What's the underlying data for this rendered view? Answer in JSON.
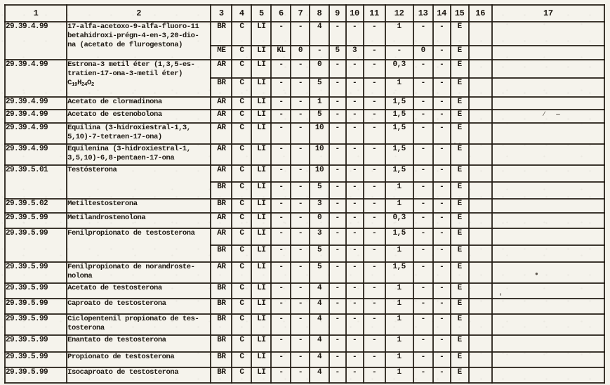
{
  "table": {
    "column_headers": [
      "1",
      "2",
      "3",
      "4",
      "5",
      "6",
      "7",
      "8",
      "9",
      "10",
      "11",
      "12",
      "13",
      "14",
      "15",
      "16",
      "17"
    ],
    "rows": [
      {
        "code": "29.39.4.99",
        "name_lines": [
          "17-alfa-acetoxo-9-alfa-fluoro-11",
          "betahidroxi-prégn-4-en-3,20-dio-",
          "na (acetato de flurogestona)"
        ],
        "subrows": [
          {
            "cells": [
              "BR",
              "C",
              "LI",
              "-",
              "-",
              "4",
              "-",
              "-",
              "-",
              "1",
              "-",
              "-",
              "E",
              "",
              ""
            ]
          },
          {
            "cells": [
              "ME",
              "C",
              "LI",
              "KL",
              "0",
              "-",
              "5",
              "3",
              "-",
              "-",
              "0",
              "-",
              "E",
              "",
              ""
            ]
          }
        ]
      },
      {
        "code": "29.39.4.99",
        "name_lines": [
          "Estrona-3 metil éter (1,3,5-es-",
          "tratien-17-ona-3-metil éter)",
          {
            "formula": [
              [
                "C",
                "19"
              ],
              [
                "H",
                "24"
              ],
              [
                "O",
                "2"
              ]
            ]
          }
        ],
        "subrows": [
          {
            "cells": [
              "AR",
              "C",
              "LI",
              "-",
              "-",
              "0",
              "-",
              "-",
              "-",
              "0,3",
              "-",
              "-",
              "E",
              "",
              ""
            ]
          },
          {
            "cells": [
              "BR",
              "C",
              "LI",
              "-",
              "-",
              "5",
              "-",
              "-",
              "-",
              "1",
              "-",
              "-",
              "E",
              "",
              ""
            ]
          }
        ]
      },
      {
        "code": "29.39.4.99",
        "name_lines": [
          "Acetato de clormadinona"
        ],
        "subrows": [
          {
            "cells": [
              "AR",
              "C",
              "LI",
              "-",
              "-",
              "1",
              "-",
              "-",
              "-",
              "1,5",
              "-",
              "-",
              "E",
              "",
              ""
            ]
          }
        ]
      },
      {
        "code": "29.39.4.99",
        "name_lines": [
          "Acetato de estenobolona"
        ],
        "subrows": [
          {
            "cells": [
              "AR",
              "C",
              "LI",
              "-",
              "-",
              "5",
              "-",
              "-",
              "-",
              "1,5",
              "-",
              "-",
              "E",
              "",
              ""
            ]
          }
        ]
      },
      {
        "code": "29.39.4.99",
        "name_lines": [
          "Equilina (3-hidroxiestral-1,3,",
          "5,10)-7-tetraen-17-ona)"
        ],
        "subrows": [
          {
            "cells": [
              "AR",
              "C",
              "LI",
              "-",
              "-",
              "10",
              "-",
              "-",
              "-",
              "1,5",
              "-",
              "-",
              "E",
              "",
              ""
            ]
          }
        ]
      },
      {
        "code": "29.39.4.99",
        "name_lines": [
          "Equilenina (3-hidroxiestral-1,",
          "3,5,10)-6,8-pentaen-17-ona"
        ],
        "subrows": [
          {
            "cells": [
              "AR",
              "C",
              "LI",
              "-",
              "-",
              "10",
              "-",
              "-",
              "-",
              "1,5",
              "-",
              "-",
              "E",
              "",
              ""
            ]
          }
        ]
      },
      {
        "code": "29.39.5.01",
        "name_lines": [
          "Testósterona"
        ],
        "subrows": [
          {
            "cells": [
              "AR",
              "C",
              "LI",
              "-",
              "-",
              "10",
              "-",
              "-",
              "-",
              "1,5",
              "-",
              "-",
              "E",
              "",
              ""
            ]
          },
          {
            "cells": [
              "BR",
              "C",
              "LI",
              "-",
              "-",
              "5",
              "-",
              "-",
              "-",
              "1",
              "-",
              "-",
              "E",
              "",
              ""
            ]
          }
        ]
      },
      {
        "code": "29.39.5.02",
        "name_lines": [
          "Metiltestosterona"
        ],
        "subrows": [
          {
            "cells": [
              "BR",
              "C",
              "LI",
              "-",
              "-",
              "3",
              "-",
              "-",
              "-",
              "1",
              "-",
              "-",
              "E",
              "",
              ""
            ]
          }
        ]
      },
      {
        "code": "29.39.5.99",
        "name_lines": [
          "Metilandrostenolona"
        ],
        "subrows": [
          {
            "cells": [
              "AR",
              "C",
              "LI",
              "-",
              "-",
              "0",
              "-",
              "-",
              "-",
              "0,3",
              "-",
              "-",
              "E",
              "",
              ""
            ]
          }
        ]
      },
      {
        "code": "29.39.5.99",
        "name_lines": [
          "Fenilpropionato de testosterona"
        ],
        "subrows": [
          {
            "cells": [
              "AR",
              "C",
              "LI",
              "-",
              "-",
              "3",
              "-",
              "-",
              "-",
              "1,5",
              "-",
              "-",
              "E",
              "",
              ""
            ]
          },
          {
            "cells": [
              "BR",
              "C",
              "LI",
              "-",
              "-",
              "5",
              "-",
              "-",
              "-",
              "1",
              "-",
              "-",
              "E",
              "",
              ""
            ]
          }
        ]
      },
      {
        "code": "29.39.5.99",
        "name_lines": [
          "Fenilpropionato de norandroste-",
          "nolona"
        ],
        "subrows": [
          {
            "cells": [
              "AR",
              "C",
              "LI",
              "-",
              "-",
              "5",
              "-",
              "-",
              "-",
              "1,5",
              "-",
              "-",
              "E",
              "",
              ""
            ]
          }
        ]
      },
      {
        "code": "29.39.5.99",
        "name_lines": [
          "Acetato de testosterona"
        ],
        "subrows": [
          {
            "cells": [
              "BR",
              "C",
              "LI",
              "-",
              "-",
              "4",
              "-",
              "-",
              "-",
              "1",
              "-",
              "-",
              "E",
              "",
              ""
            ]
          }
        ]
      },
      {
        "code": "29.39.5.99",
        "name_lines": [
          "Caproato de testosterona"
        ],
        "subrows": [
          {
            "cells": [
              "BR",
              "C",
              "LI",
              "-",
              "-",
              "4",
              "-",
              "-",
              "-",
              "1",
              "-",
              "-",
              "E",
              "",
              ""
            ]
          }
        ]
      },
      {
        "code": "29.39.5.99",
        "name_lines": [
          "Ciclopentenil propionato de tes-",
          "tosterona"
        ],
        "subrows": [
          {
            "cells": [
              "BR",
              "C",
              "LI",
              "-",
              "-",
              "4",
              "-",
              "-",
              "-",
              "1",
              "-",
              "-",
              "E",
              "",
              ""
            ]
          }
        ]
      },
      {
        "code": "29.39.5.99",
        "name_lines": [
          "Enantato de testosterona"
        ],
        "subrows": [
          {
            "cells": [
              "BR",
              "C",
              "LI",
              "-",
              "-",
              "4",
              "-",
              "-",
              "-",
              "1",
              "-",
              "-",
              "E",
              "",
              ""
            ]
          }
        ]
      },
      {
        "code": "29.39.5.99",
        "name_lines": [
          "Propionato de testosterona"
        ],
        "subrows": [
          {
            "cells": [
              "BR",
              "C",
              "LI",
              "-",
              "-",
              "4",
              "-",
              "-",
              "-",
              "1",
              "-",
              "-",
              "E",
              "",
              ""
            ]
          }
        ]
      },
      {
        "code": "29.39.5.99",
        "name_lines": [
          "Isocaproato de testosterona"
        ],
        "subrows": [
          {
            "cells": [
              "BR",
              "C",
              "LI",
              "-",
              "-",
              "4",
              "-",
              "-",
              "-",
              "1",
              "-",
              "-",
              "E",
              "",
              ""
            ]
          }
        ]
      }
    ]
  },
  "artifacts": [
    {
      "glyph": "⁄ ‒"
    },
    {
      "glyph": "●"
    },
    {
      "glyph": "'"
    },
    {
      "glyph": "··"
    }
  ]
}
